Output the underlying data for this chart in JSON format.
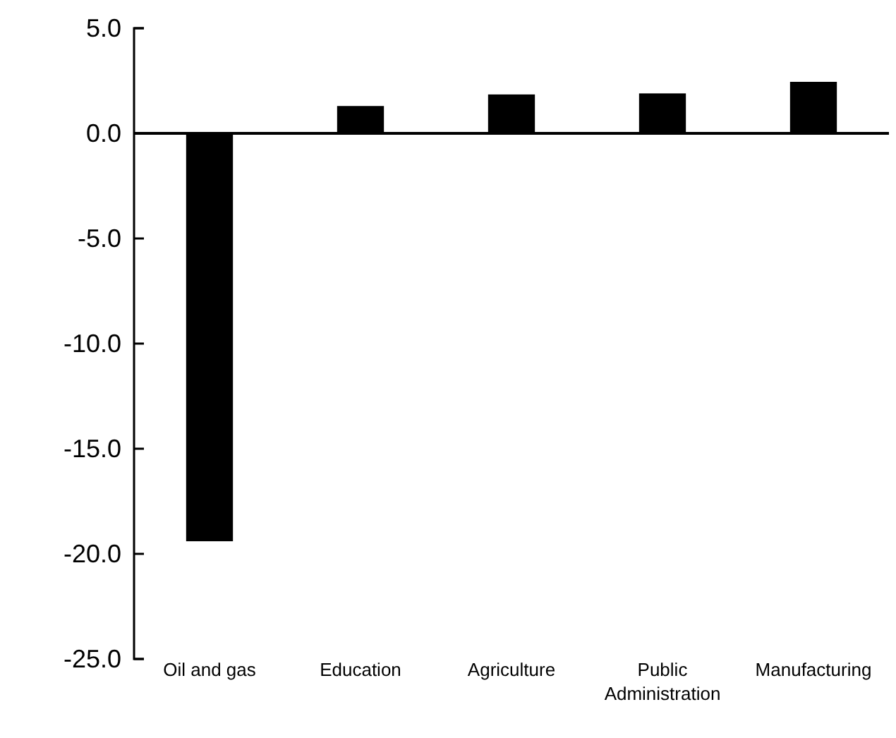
{
  "chart_data": {
    "type": "bar",
    "categories": [
      "Oil and gas",
      "Education",
      "Agriculture",
      "Public Administration",
      "Manufacturing"
    ],
    "values": [
      -19.4,
      1.3,
      1.85,
      1.9,
      2.45
    ],
    "color": "#000000",
    "ylim": [
      -25,
      5
    ],
    "yticks": [
      {
        "value": 5,
        "label": "5.0"
      },
      {
        "value": 0,
        "label": "0.0"
      },
      {
        "value": -5,
        "label": "-5.0"
      },
      {
        "value": -10,
        "label": "-10.0"
      },
      {
        "value": -15,
        "label": "-15.0"
      },
      {
        "value": -20,
        "label": "-20.0"
      },
      {
        "value": -25,
        "label": "-25.0"
      }
    ]
  }
}
